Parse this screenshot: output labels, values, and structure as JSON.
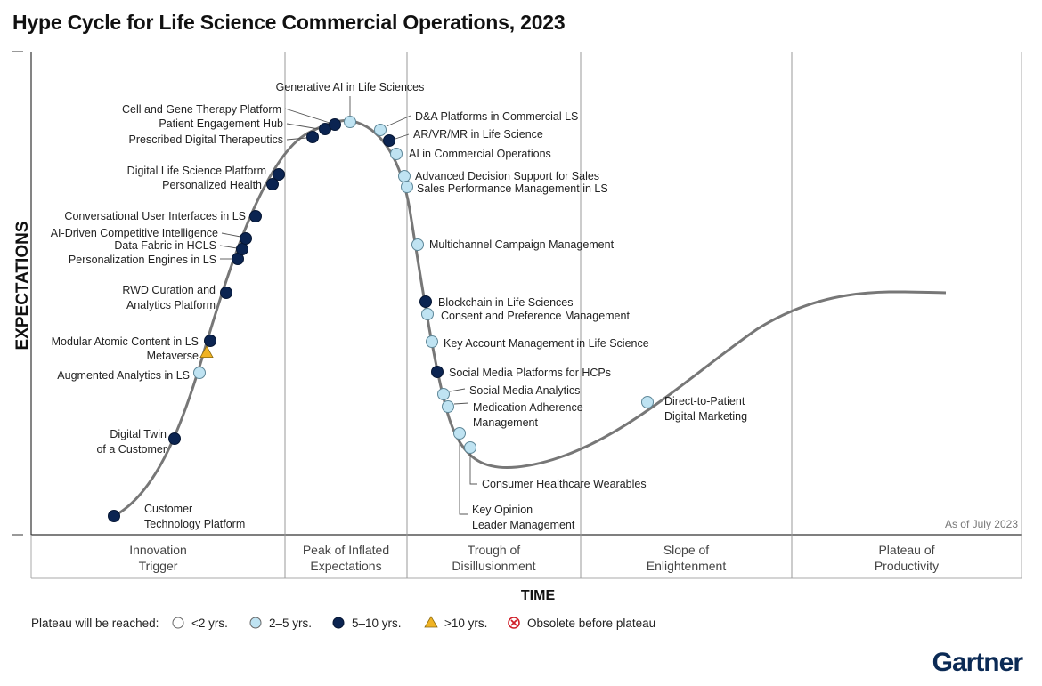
{
  "title": "Hype Cycle for Life Science Commercial Operations, 2023",
  "brand": "Gartner",
  "colors": {
    "curve": "#777777",
    "lt2": "#ffffff",
    "y2to5": "#bfe3f2",
    "y5to10": "#0b2451",
    "gt10": "#f0b323",
    "obsolete": "#d0202a",
    "grid": "#999999"
  },
  "chart_data": {
    "type": "scatter",
    "ylabel": "EXPECTATIONS",
    "xlabel": "TIME",
    "as_of": "As of July 2023",
    "phases": [
      {
        "id": "innovation",
        "lines": [
          "Innovation",
          "Trigger"
        ]
      },
      {
        "id": "peak",
        "lines": [
          "Peak of Inflated",
          "Expectations"
        ]
      },
      {
        "id": "trough",
        "lines": [
          "Trough of",
          "Disillusionment"
        ]
      },
      {
        "id": "slope",
        "lines": [
          "Slope of",
          "Enlightenment"
        ]
      },
      {
        "id": "plateau",
        "lines": [
          "Plateau of",
          "Productivity"
        ]
      }
    ],
    "legend": {
      "prefix": "Plateau will be reached:",
      "items": [
        {
          "key": "lt2",
          "label": "<2 yrs."
        },
        {
          "key": "y2to5",
          "label": "2–5 yrs."
        },
        {
          "key": "y5to10",
          "label": "5–10 yrs."
        },
        {
          "key": "gt10",
          "label": ">10 yrs."
        },
        {
          "key": "obsolete",
          "label": "Obsolete before plateau"
        }
      ]
    },
    "technologies": [
      {
        "label": "Customer\nTechnology Platform",
        "years": "y5to10"
      },
      {
        "label": "Digital Twin\nof a Customer",
        "years": "y5to10"
      },
      {
        "label": "Augmented Analytics in LS",
        "years": "y2to5"
      },
      {
        "label": "Metaverse",
        "years": "gt10"
      },
      {
        "label": "Modular Atomic Content in LS",
        "years": "y5to10"
      },
      {
        "label": "RWD Curation and\nAnalytics Platform",
        "years": "y5to10"
      },
      {
        "label": "Personalization Engines in LS",
        "years": "y5to10"
      },
      {
        "label": "Data Fabric in HCLS",
        "years": "y5to10"
      },
      {
        "label": "AI-Driven Competitive Intelligence",
        "years": "y5to10"
      },
      {
        "label": "Conversational User Interfaces in LS",
        "years": "y5to10"
      },
      {
        "label": "Personalized Health",
        "years": "y5to10"
      },
      {
        "label": "Digital Life Science Platform",
        "years": "y5to10"
      },
      {
        "label": "Prescribed Digital Therapeutics",
        "years": "y5to10"
      },
      {
        "label": "Patient Engagement Hub",
        "years": "y5to10"
      },
      {
        "label": "Cell and Gene Therapy Platform",
        "years": "y5to10"
      },
      {
        "label": "Generative AI in Life Sciences",
        "years": "y2to5"
      },
      {
        "label": "D&A Platforms in Commercial LS",
        "years": "y2to5"
      },
      {
        "label": "AR/VR/MR in Life Science",
        "years": "y5to10"
      },
      {
        "label": "AI in Commercial Operations",
        "years": "y2to5"
      },
      {
        "label": "Advanced Decision Support for Sales",
        "years": "y2to5"
      },
      {
        "label": "Sales Performance Management in LS",
        "years": "y2to5"
      },
      {
        "label": "Multichannel Campaign Management",
        "years": "y2to5"
      },
      {
        "label": "Blockchain in Life Sciences",
        "years": "y5to10"
      },
      {
        "label": "Consent and Preference Management",
        "years": "y2to5"
      },
      {
        "label": "Key Account Management in Life Science",
        "years": "y2to5"
      },
      {
        "label": "Social Media Platforms for HCPs",
        "years": "y5to10"
      },
      {
        "label": "Social Media Analytics",
        "years": "y2to5"
      },
      {
        "label": "Medication Adherence\nManagement",
        "years": "y2to5"
      },
      {
        "label": "Key Opinion\nLeader Management",
        "years": "y2to5"
      },
      {
        "label": "Consumer Healthcare Wearables",
        "years": "y2to5"
      },
      {
        "label": "Direct-to-Patient\nDigital Marketing",
        "years": "y2to5"
      }
    ]
  }
}
